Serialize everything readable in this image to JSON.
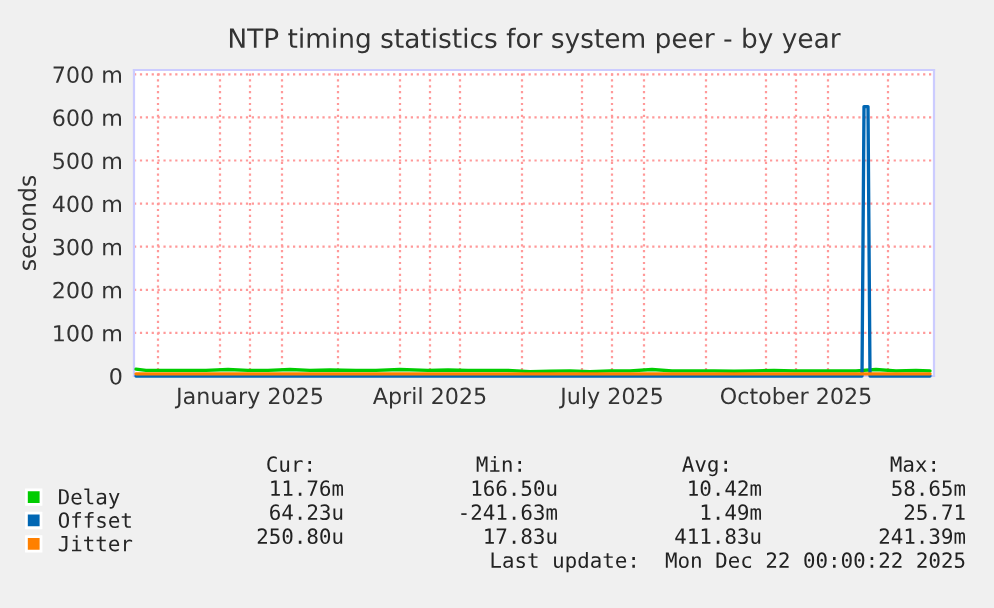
{
  "chart_data": {
    "type": "line",
    "title": "NTP timing statistics for system peer - by year",
    "ylabel": "seconds",
    "xlim": [
      "2024-11-19",
      "2025-12-24"
    ],
    "xticks": [
      {
        "value": "2024-12-01",
        "label": null
      },
      {
        "value": "2025-01-01",
        "label": null
      },
      {
        "value": "2025-01-16",
        "label": "January 2025"
      },
      {
        "value": "2025-02-01",
        "label": null
      },
      {
        "value": "2025-03-01",
        "label": null
      },
      {
        "value": "2025-04-01",
        "label": null
      },
      {
        "value": "2025-04-16",
        "label": "April 2025"
      },
      {
        "value": "2025-05-01",
        "label": null
      },
      {
        "value": "2025-06-01",
        "label": null
      },
      {
        "value": "2025-07-01",
        "label": null
      },
      {
        "value": "2025-07-16",
        "label": "July 2025"
      },
      {
        "value": "2025-08-01",
        "label": null
      },
      {
        "value": "2025-09-01",
        "label": null
      },
      {
        "value": "2025-10-01",
        "label": null
      },
      {
        "value": "2025-10-16",
        "label": "October 2025"
      },
      {
        "value": "2025-11-01",
        "label": null
      },
      {
        "value": "2025-12-01",
        "label": null
      }
    ],
    "ylim": [
      0,
      710
    ],
    "yticks": [
      0,
      {
        "value": 100,
        "label": "100 m"
      },
      {
        "value": 200,
        "label": "200 m"
      },
      {
        "value": 300,
        "label": "300 m"
      },
      {
        "value": 400,
        "label": "400 m"
      },
      {
        "value": 500,
        "label": "500 m"
      },
      {
        "value": 600,
        "label": "600 m"
      },
      {
        "value": 700,
        "label": "700 m"
      }
    ],
    "grid": true,
    "legend": "bottom",
    "series": [
      {
        "name": "Delay",
        "color": "#00cc00",
        "x": [
          "2024-11-20",
          "2024-11-25",
          "2024-12-05",
          "2024-12-15",
          "2024-12-25",
          "2025-01-05",
          "2025-01-15",
          "2025-01-25",
          "2025-02-05",
          "2025-02-15",
          "2025-02-25",
          "2025-03-10",
          "2025-03-20",
          "2025-04-01",
          "2025-04-15",
          "2025-04-25",
          "2025-05-05",
          "2025-05-15",
          "2025-05-25",
          "2025-06-05",
          "2025-06-15",
          "2025-06-25",
          "2025-07-05",
          "2025-07-15",
          "2025-07-25",
          "2025-08-05",
          "2025-08-15",
          "2025-08-25",
          "2025-09-05",
          "2025-09-15",
          "2025-09-25",
          "2025-10-05",
          "2025-10-15",
          "2025-10-25",
          "2025-11-05",
          "2025-11-15",
          "2025-11-25",
          "2025-12-05",
          "2025-12-15",
          "2025-12-22"
        ],
        "values": [
          16,
          13,
          13,
          13,
          13,
          15,
          13,
          13,
          15,
          13,
          14,
          13,
          13,
          15,
          13,
          14,
          13,
          13,
          13,
          10,
          11,
          12,
          10,
          12,
          12,
          15,
          12,
          12,
          12,
          11,
          12,
          13,
          12,
          12,
          12,
          12,
          15,
          12,
          13,
          12
        ]
      },
      {
        "name": "Offset",
        "color": "#0066b3",
        "x": [
          "2024-11-20",
          "2025-06-01",
          "2025-11-18",
          "2025-11-19",
          "2025-11-21",
          "2025-11-22",
          "2025-12-22"
        ],
        "values": [
          0,
          0,
          0,
          625,
          625,
          0,
          0
        ]
      },
      {
        "name": "Jitter",
        "color": "#ff8000",
        "x": [
          "2024-11-20",
          "2025-06-01",
          "2025-12-22"
        ],
        "values": [
          5,
          5,
          5
        ]
      }
    ],
    "annotations": [
      "Cur:",
      "Min:",
      "Avg:",
      "Max:",
      "11.76m",
      "166.50u",
      "10.42m",
      "58.65m",
      "64.23u",
      "-241.63m",
      "1.49m",
      "25.71",
      "250.80u",
      "17.83u",
      "411.83u",
      "241.39m",
      "Last update:  Mon Dec 22 00:00:22 2025"
    ]
  }
}
